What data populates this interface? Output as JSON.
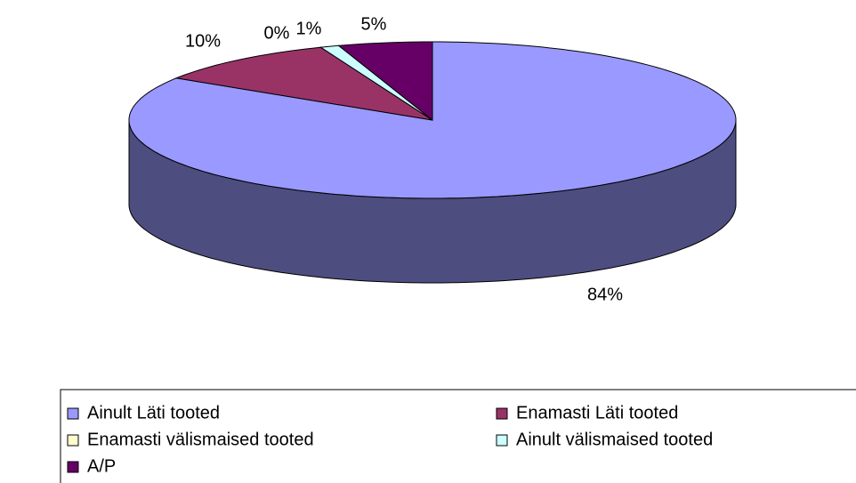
{
  "chart_data": {
    "type": "pie3d",
    "categories": [
      "Ainult Läti tooted",
      "Enamasti Läti tooted",
      "Enamasti välismaised tooted",
      "Ainult välismaised tooted",
      "A/P"
    ],
    "values": [
      84,
      10,
      0,
      1,
      5
    ],
    "value_labels": [
      "84%",
      "10%",
      "0%",
      "1%",
      "5%"
    ],
    "colors": [
      "#9999ff",
      "#993366",
      "#ffffcc",
      "#ccffff",
      "#660066"
    ],
    "legend": "bottom"
  }
}
